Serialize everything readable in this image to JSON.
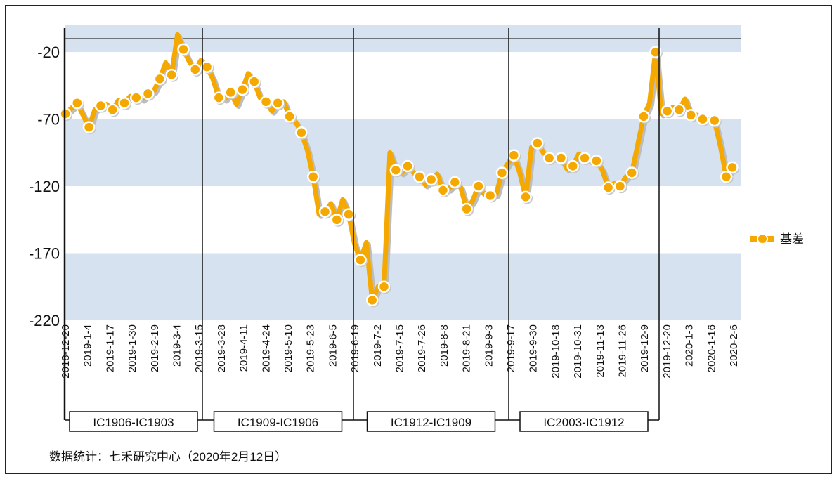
{
  "chart_data": {
    "type": "line",
    "title": "",
    "xlabel": "",
    "ylabel": "",
    "ylim": [
      -220,
      0
    ],
    "yticks": [
      -20,
      -70,
      -120,
      -170,
      -220
    ],
    "band_edges": [
      0,
      -20,
      -70,
      -120,
      -170,
      -220
    ],
    "reference_line": -10,
    "grid": false,
    "legend_position": "right",
    "x_tick_labels": [
      "2018-12-20",
      "2019-1-4",
      "2019-1-17",
      "2019-1-30",
      "2019-2-19",
      "2019-3-4",
      "2019-3-15",
      "2019-3-28",
      "2019-4-11",
      "2019-4-24",
      "2019-5-10",
      "2019-5-23",
      "2019-6-5",
      "2019-6-19",
      "2019-7-2",
      "2019-7-15",
      "2019-7-26",
      "2019-8-8",
      "2019-8-21",
      "2019-9-3",
      "2019-9-17",
      "2019-9-30",
      "2019-10-18",
      "2019-10-31",
      "2019-11-13",
      "2019-11-26",
      "2019-12-9",
      "2019-12-20",
      "2020-1-3",
      "2020-1-16",
      "2020-2-6"
    ],
    "series": [
      {
        "name": "基差",
        "color": "#F5A800",
        "values": [
          -66,
          -62,
          -58,
          -67,
          -76,
          -63,
          -60,
          -59,
          -63,
          -56,
          -58,
          -53,
          -54,
          -55,
          -51,
          -49,
          -40,
          -28,
          -37,
          -7,
          -18,
          -27,
          -33,
          -26,
          -31,
          -40,
          -54,
          -55,
          -50,
          -59,
          -48,
          -36,
          -42,
          -54,
          -57,
          -64,
          -58,
          -57,
          -68,
          -72,
          -80,
          -93,
          -113,
          -141,
          -139,
          -133,
          -145,
          -130,
          -141,
          -163,
          -175,
          -162,
          -205,
          -195,
          -195,
          -95,
          -108,
          -110,
          -105,
          -110,
          -113,
          -119,
          -115,
          -111,
          -123,
          -122,
          -117,
          -121,
          -137,
          -131,
          -120,
          -126,
          -127,
          -126,
          -110,
          -103,
          -97,
          -110,
          -128,
          -91,
          -88,
          -95,
          -99,
          -99,
          -99,
          -107,
          -105,
          -96,
          -99,
          -101,
          -101,
          -108,
          -121,
          -118,
          -120,
          -113,
          -110,
          -89,
          -68,
          -58,
          -20,
          -66,
          -64,
          -61,
          -63,
          -55,
          -67,
          -67,
          -70,
          -70,
          -71,
          -90,
          -113,
          -106
        ]
      }
    ],
    "contract_labels": [
      "IC1906-IC1903",
      "IC1909-IC1906",
      "IC1912-IC1909",
      "IC2003-IC1912"
    ],
    "source_note": "数据统计：七禾研究中心（2020年2月12日）"
  }
}
